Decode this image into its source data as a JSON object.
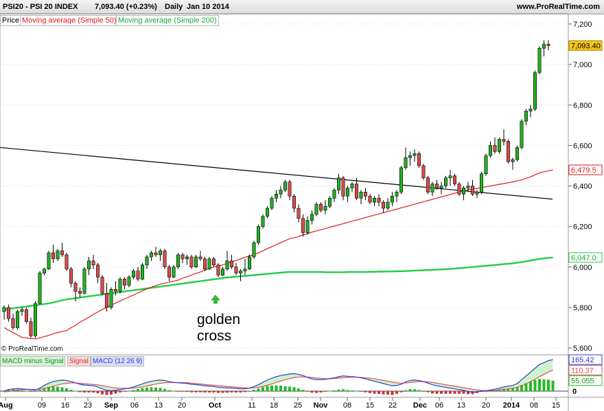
{
  "header": {
    "symbol": "PSI20 - PSI 20 INDEX",
    "quote": "7,093.40 (+0.23%)",
    "period": "Daily",
    "date": "Jan 10 2014",
    "site": "www.ProRealTime.com"
  },
  "legend": {
    "price": "Price",
    "ma50": "Moving average (Simple 50)",
    "ma200": "Moving average (Simple 200)"
  },
  "macd_legend": {
    "hist": "MACD minus Signal",
    "signal": "Signal",
    "macd": "MACD (12 26 9)"
  },
  "copyright": "© ProRealTime.com",
  "annotation": {
    "line1": "golden",
    "line2": "cross",
    "arrow_date": "Oct 01"
  },
  "colors": {
    "up": "#22b022",
    "down": "#d94c4c",
    "ma50": "#e01818",
    "ma200": "#22cc44",
    "trend": "#000000",
    "macd": "#2a3ad0",
    "signal": "#e05050",
    "hist": "#22bb22"
  },
  "chart_data": {
    "type": "candlestick",
    "price_axis": {
      "ylim": [
        5600,
        7250
      ],
      "ticks": [
        "7,200",
        "7,000",
        "6,800",
        "6,600",
        "6,400",
        "6,200",
        "6,000",
        "5,800",
        "5,600"
      ]
    },
    "x_ticks": [
      "Aug",
      "09",
      "16",
      "23",
      "Sep",
      "06",
      "13",
      "20",
      "Oct",
      "11",
      "18",
      "25",
      "Nov",
      "08",
      "15",
      "22",
      "Dec",
      "06",
      "13",
      "20",
      "2014",
      "08",
      "15"
    ],
    "value_tags": {
      "last": "7,093.40",
      "ma50": "6,479.5",
      "ma200": "6,047.0"
    },
    "macd_axis": {
      "ylim": [
        -45,
        180
      ],
      "ticks": [
        "0"
      ],
      "tags": {
        "macd": "165.42",
        "signal": "110.37",
        "hist": "55.055"
      }
    },
    "candles": [
      [
        5780,
        5810,
        5740,
        5800
      ],
      [
        5800,
        5815,
        5730,
        5745
      ],
      [
        5745,
        5770,
        5690,
        5700
      ],
      [
        5700,
        5790,
        5690,
        5780
      ],
      [
        5780,
        5800,
        5760,
        5790
      ],
      [
        5790,
        5800,
        5720,
        5730
      ],
      [
        5730,
        5750,
        5650,
        5660
      ],
      [
        5660,
        5830,
        5650,
        5820
      ],
      [
        5820,
        5980,
        5815,
        5970
      ],
      [
        5970,
        5995,
        5960,
        5990
      ],
      [
        5990,
        6080,
        5985,
        6070
      ],
      [
        6070,
        6110,
        6020,
        6040
      ],
      [
        6040,
        6090,
        6030,
        6080
      ],
      [
        6080,
        6120,
        6050,
        6060
      ],
      [
        6060,
        6070,
        5980,
        5990
      ],
      [
        5990,
        6000,
        5900,
        5920
      ],
      [
        5920,
        5930,
        5830,
        5880
      ],
      [
        5880,
        5900,
        5850,
        5870
      ],
      [
        5870,
        6000,
        5865,
        5990
      ],
      [
        5990,
        6050,
        5960,
        6030
      ],
      [
        6030,
        6060,
        5990,
        6010
      ],
      [
        6010,
        6020,
        5920,
        5950
      ],
      [
        5950,
        5960,
        5860,
        5870
      ],
      [
        5870,
        5920,
        5780,
        5800
      ],
      [
        5800,
        5900,
        5790,
        5890
      ],
      [
        5890,
        5930,
        5860,
        5880
      ],
      [
        5880,
        5950,
        5870,
        5940
      ],
      [
        5940,
        5950,
        5890,
        5910
      ],
      [
        5910,
        5960,
        5900,
        5950
      ],
      [
        5950,
        5990,
        5940,
        5980
      ],
      [
        5980,
        6000,
        5930,
        5940
      ],
      [
        5940,
        6020,
        5935,
        6010
      ],
      [
        6010,
        6060,
        5990,
        6050
      ],
      [
        6050,
        6080,
        6030,
        6070
      ],
      [
        6070,
        6100,
        6050,
        6060
      ],
      [
        6060,
        6090,
        6030,
        6080
      ],
      [
        6080,
        6090,
        5990,
        6000
      ],
      [
        6000,
        6010,
        5930,
        5950
      ],
      [
        5950,
        6010,
        5945,
        6000
      ],
      [
        6000,
        6070,
        5990,
        6060
      ],
      [
        6060,
        6070,
        6020,
        6040
      ],
      [
        6040,
        6060,
        6010,
        6050
      ],
      [
        6050,
        6060,
        5990,
        6000
      ],
      [
        6000,
        6060,
        5995,
        6050
      ],
      [
        6050,
        6080,
        6030,
        6040
      ],
      [
        6040,
        6050,
        5980,
        5990
      ],
      [
        5990,
        6050,
        5985,
        6040
      ],
      [
        6040,
        6050,
        6000,
        6010
      ],
      [
        6010,
        6020,
        5950,
        5960
      ],
      [
        5960,
        6000,
        5955,
        5990
      ],
      [
        5990,
        6080,
        5980,
        6030
      ],
      [
        6030,
        6060,
        5990,
        6000
      ],
      [
        6000,
        6020,
        5960,
        5970
      ],
      [
        5970,
        5990,
        5930,
        5980
      ],
      [
        5980,
        6040,
        5960,
        5990
      ],
      [
        5990,
        6060,
        5985,
        6050
      ],
      [
        6050,
        6130,
        6040,
        6120
      ],
      [
        6120,
        6210,
        6110,
        6200
      ],
      [
        6200,
        6260,
        6190,
        6250
      ],
      [
        6250,
        6300,
        6240,
        6290
      ],
      [
        6290,
        6350,
        6280,
        6340
      ],
      [
        6340,
        6380,
        6320,
        6360
      ],
      [
        6360,
        6400,
        6340,
        6380
      ],
      [
        6380,
        6430,
        6370,
        6420
      ],
      [
        6420,
        6430,
        6330,
        6350
      ],
      [
        6350,
        6360,
        6270,
        6290
      ],
      [
        6290,
        6310,
        6220,
        6240
      ],
      [
        6240,
        6260,
        6150,
        6170
      ],
      [
        6170,
        6250,
        6160,
        6230
      ],
      [
        6230,
        6280,
        6210,
        6260
      ],
      [
        6260,
        6320,
        6250,
        6310
      ],
      [
        6310,
        6320,
        6270,
        6280
      ],
      [
        6280,
        6330,
        6260,
        6300
      ],
      [
        6300,
        6350,
        6290,
        6340
      ],
      [
        6340,
        6390,
        6320,
        6380
      ],
      [
        6380,
        6460,
        6360,
        6440
      ],
      [
        6440,
        6450,
        6330,
        6350
      ],
      [
        6350,
        6400,
        6320,
        6390
      ],
      [
        6390,
        6420,
        6370,
        6410
      ],
      [
        6410,
        6440,
        6330,
        6340
      ],
      [
        6340,
        6380,
        6310,
        6370
      ],
      [
        6370,
        6390,
        6330,
        6350
      ],
      [
        6350,
        6360,
        6310,
        6320
      ],
      [
        6320,
        6350,
        6300,
        6340
      ],
      [
        6340,
        6360,
        6300,
        6320
      ],
      [
        6320,
        6330,
        6270,
        6290
      ],
      [
        6290,
        6340,
        6280,
        6320
      ],
      [
        6320,
        6370,
        6300,
        6350
      ],
      [
        6350,
        6380,
        6320,
        6370
      ],
      [
        6370,
        6500,
        6360,
        6490
      ],
      [
        6490,
        6590,
        6480,
        6540
      ],
      [
        6540,
        6570,
        6500,
        6550
      ],
      [
        6550,
        6580,
        6520,
        6560
      ],
      [
        6560,
        6570,
        6490,
        6500
      ],
      [
        6500,
        6510,
        6430,
        6440
      ],
      [
        6440,
        6450,
        6360,
        6370
      ],
      [
        6370,
        6420,
        6350,
        6410
      ],
      [
        6410,
        6430,
        6380,
        6390
      ],
      [
        6390,
        6420,
        6360,
        6400
      ],
      [
        6400,
        6450,
        6390,
        6440
      ],
      [
        6440,
        6480,
        6400,
        6450
      ],
      [
        6450,
        6460,
        6400,
        6410
      ],
      [
        6410,
        6420,
        6350,
        6360
      ],
      [
        6360,
        6400,
        6330,
        6390
      ],
      [
        6390,
        6420,
        6370,
        6400
      ],
      [
        6400,
        6430,
        6350,
        6360
      ],
      [
        6360,
        6380,
        6340,
        6370
      ],
      [
        6370,
        6470,
        6360,
        6460
      ],
      [
        6460,
        6560,
        6450,
        6550
      ],
      [
        6550,
        6620,
        6540,
        6600
      ],
      [
        6600,
        6640,
        6560,
        6570
      ],
      [
        6570,
        6640,
        6560,
        6630
      ],
      [
        6630,
        6680,
        6600,
        6620
      ],
      [
        6620,
        6630,
        6510,
        6520
      ],
      [
        6520,
        6540,
        6480,
        6530
      ],
      [
        6530,
        6600,
        6520,
        6590
      ],
      [
        6590,
        6730,
        6580,
        6720
      ],
      [
        6720,
        6780,
        6700,
        6770
      ],
      [
        6770,
        6800,
        6740,
        6780
      ],
      [
        6780,
        6970,
        6770,
        6960
      ],
      [
        6960,
        7090,
        6950,
        7080
      ],
      [
        7080,
        7120,
        7040,
        7100
      ],
      [
        7100,
        7120,
        7070,
        7093
      ]
    ],
    "ma50": [
      5700,
      5688,
      5676,
      5664,
      5652,
      5650,
      5646,
      5645,
      5650,
      5656,
      5662,
      5670,
      5676,
      5682,
      5686,
      5700,
      5712,
      5728,
      5740,
      5752,
      5766,
      5778,
      5790,
      5802,
      5812,
      5822,
      5832,
      5842,
      5852,
      5862,
      5872,
      5882,
      5892,
      5900,
      5908,
      5915,
      5920,
      5925,
      5930,
      5935,
      5945,
      5952,
      5960,
      5968,
      5975,
      5985,
      5992,
      6000,
      6005,
      6010,
      6018,
      6025,
      6032,
      6040,
      6048,
      6055,
      6060,
      6070,
      6080,
      6090,
      6100,
      6110,
      6120,
      6130,
      6140,
      6145,
      6150,
      6158,
      6165,
      6172,
      6178,
      6184,
      6190,
      6196,
      6202,
      6208,
      6214,
      6220,
      6226,
      6232,
      6238,
      6244,
      6250,
      6256,
      6262,
      6268,
      6274,
      6280,
      6286,
      6292,
      6298,
      6304,
      6310,
      6316,
      6322,
      6328,
      6334,
      6340,
      6346,
      6352,
      6358,
      6364,
      6370,
      6376,
      6382,
      6385,
      6388,
      6392,
      6396,
      6400,
      6404,
      6408,
      6412,
      6416,
      6420,
      6425,
      6430,
      6438,
      6445,
      6455,
      6465,
      6470,
      6475,
      6479.5
    ],
    "ma200": [
      5790,
      5793,
      5796,
      5799,
      5802,
      5805,
      5808,
      5811,
      5814,
      5817,
      5820,
      5825,
      5830,
      5835,
      5840,
      5843,
      5846,
      5849,
      5852,
      5855,
      5858,
      5861,
      5864,
      5867,
      5870,
      5873,
      5876,
      5879,
      5882,
      5885,
      5888,
      5891,
      5894,
      5897,
      5900,
      5903,
      5906,
      5909,
      5912,
      5915,
      5918,
      5921,
      5924,
      5927,
      5930,
      5933,
      5936,
      5939,
      5942,
      5945,
      5948,
      5950,
      5952,
      5954,
      5956,
      5958,
      5960,
      5962,
      5964,
      5966,
      5968,
      5970,
      5972,
      5974,
      5975,
      5975,
      5975,
      5975,
      5975,
      5975,
      5975,
      5975,
      5974,
      5974,
      5974,
      5974,
      5974,
      5975,
      5975,
      5975,
      5975,
      5975,
      5976,
      5976,
      5977,
      5977,
      5978,
      5978,
      5979,
      5979,
      5980,
      5981,
      5982,
      5983,
      5984,
      5985,
      5986,
      5987,
      5988,
      5989,
      5990,
      5992,
      5994,
      5996,
      5998,
      6000,
      6002,
      6004,
      6006,
      6008,
      6010,
      6012,
      6014,
      6016,
      6018,
      6021,
      6024,
      6028,
      6032,
      6036,
      6040,
      6042,
      6045,
      6047
    ],
    "trendline": {
      "start": [
        0,
        6590
      ],
      "end": [
        124,
        6335
      ]
    },
    "macd": [
      0,
      8,
      12,
      14,
      12,
      10,
      8,
      6,
      16,
      30,
      42,
      50,
      55,
      58,
      56,
      50,
      44,
      36,
      32,
      30,
      28,
      22,
      12,
      4,
      2,
      4,
      8,
      12,
      16,
      22,
      30,
      38,
      46,
      52,
      56,
      58,
      56,
      50,
      46,
      44,
      42,
      40,
      36,
      34,
      32,
      28,
      26,
      24,
      20,
      18,
      17,
      16,
      14,
      12,
      12,
      16,
      24,
      34,
      46,
      58,
      68,
      76,
      82,
      86,
      90,
      92,
      88,
      82,
      72,
      64,
      60,
      60,
      62,
      66,
      70,
      76,
      80,
      78,
      76,
      74,
      70,
      64,
      58,
      52,
      46,
      40,
      34,
      28,
      30,
      36,
      48,
      56,
      58,
      56,
      50,
      42,
      34,
      28,
      24,
      20,
      16,
      12,
      8,
      4,
      -2,
      -6,
      -4,
      0,
      2,
      6,
      10,
      16,
      22,
      26,
      30,
      40,
      60,
      80,
      100,
      120,
      140,
      150,
      160,
      165.42
    ],
    "signal": [
      -4,
      -2,
      2,
      6,
      8,
      9,
      9,
      8,
      10,
      14,
      20,
      26,
      32,
      38,
      41,
      43,
      43,
      41,
      39,
      37,
      35,
      33,
      29,
      24,
      20,
      17,
      15,
      15,
      15,
      16,
      19,
      22,
      27,
      32,
      37,
      41,
      44,
      45,
      45,
      45,
      45,
      44,
      42,
      40,
      38,
      35,
      33,
      31,
      29,
      27,
      25,
      23,
      21,
      19,
      17,
      16,
      17,
      20,
      25,
      31,
      38,
      46,
      53,
      60,
      66,
      71,
      74,
      75,
      74,
      72,
      69,
      67,
      65,
      65,
      66,
      68,
      70,
      72,
      73,
      73,
      72,
      70,
      68,
      65,
      61,
      57,
      52,
      48,
      44,
      42,
      43,
      45,
      48,
      50,
      50,
      48,
      46,
      42,
      38,
      34,
      30,
      26,
      22,
      18,
      14,
      10,
      6,
      4,
      3,
      3,
      4,
      6,
      9,
      12,
      16,
      20,
      28,
      38,
      50,
      62,
      76,
      88,
      100,
      110.37
    ]
  }
}
